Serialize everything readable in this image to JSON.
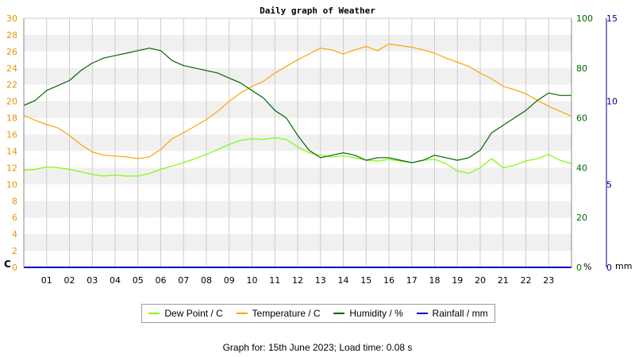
{
  "page": {
    "footer_prefix": "Graph for:",
    "footer_date": "15th June 2023;",
    "footer_load": "Load time: 0.08 s"
  },
  "colors": {
    "dew_point": "#7cfc00",
    "temperature": "#ffa500",
    "humidity": "#006400",
    "rainfall": "#0000cd",
    "axis_left": "#e69500",
    "axis_hum": "#006400",
    "axis_rain": "#00008b",
    "band": "#f0f0f0",
    "grid": "#cccccc"
  },
  "chart_data": {
    "type": "line",
    "title": "Daily graph of Weather",
    "x_ticks": [
      "01",
      "02",
      "03",
      "04",
      "05",
      "06",
      "07",
      "08",
      "09",
      "10",
      "11",
      "12",
      "13",
      "14",
      "15",
      "16",
      "17",
      "18",
      "19",
      "20",
      "21",
      "22",
      "23"
    ],
    "xlim": [
      0,
      24
    ],
    "grid": true,
    "legend_placement": "bottom",
    "axes": {
      "left": {
        "unit": "C",
        "ylim": [
          0,
          30
        ],
        "ticks": [
          0,
          2,
          4,
          6,
          8,
          10,
          12,
          14,
          16,
          18,
          20,
          22,
          24,
          26,
          28,
          30
        ]
      },
      "right_humidity": {
        "unit": "%",
        "ylim": [
          0,
          100
        ],
        "ticks": [
          0,
          20,
          40,
          60,
          80,
          100
        ]
      },
      "right_rain": {
        "unit": "mm",
        "ylim": [
          0,
          15
        ],
        "ticks": [
          0,
          5,
          10,
          15
        ]
      }
    },
    "series": [
      {
        "name": "Dew Point / C",
        "axis": "left",
        "color_key": "dew_point",
        "x": [
          0,
          0.5,
          1,
          1.5,
          2,
          2.5,
          3,
          3.5,
          4,
          4.5,
          5,
          5.5,
          6,
          6.5,
          7,
          7.5,
          8,
          8.5,
          9,
          9.5,
          10,
          10.5,
          11,
          11.5,
          12,
          12.5,
          13,
          13.5,
          14,
          14.5,
          15,
          15.5,
          16,
          16.5,
          17,
          17.5,
          18,
          18.5,
          19,
          19.5,
          20,
          20.5,
          21,
          21.5,
          22,
          22.5,
          23,
          23.5,
          24
        ],
        "y": [
          11.7,
          11.8,
          12.1,
          12.0,
          11.8,
          11.5,
          11.2,
          11.0,
          11.1,
          11.0,
          11.0,
          11.3,
          11.8,
          12.2,
          12.6,
          13.1,
          13.6,
          14.2,
          14.8,
          15.3,
          15.5,
          15.4,
          15.6,
          15.4,
          14.5,
          13.8,
          13.5,
          13.3,
          13.4,
          13.2,
          12.9,
          12.8,
          13.0,
          12.8,
          12.6,
          12.9,
          13.0,
          12.5,
          11.6,
          11.3,
          12.0,
          13.1,
          12.0,
          12.3,
          12.8,
          13.1,
          13.6,
          12.9,
          12.5
        ]
      },
      {
        "name": "Temperature / C",
        "axis": "left",
        "color_key": "temperature",
        "x": [
          0,
          0.5,
          1,
          1.5,
          2,
          2.5,
          3,
          3.5,
          4,
          4.5,
          5,
          5.5,
          6,
          6.5,
          7,
          7.5,
          8,
          8.5,
          9,
          9.5,
          10,
          10.5,
          11,
          11.5,
          12,
          12.5,
          13,
          13.5,
          14,
          14.5,
          15,
          15.5,
          16,
          16.5,
          17,
          17.5,
          18,
          18.5,
          19,
          19.5,
          20,
          20.5,
          21,
          21.5,
          22,
          22.5,
          23,
          23.5,
          24
        ],
        "y": [
          18.3,
          17.7,
          17.2,
          16.8,
          15.9,
          14.8,
          13.9,
          13.5,
          13.4,
          13.3,
          13.1,
          13.3,
          14.2,
          15.5,
          16.2,
          17.0,
          17.8,
          18.8,
          20.0,
          21.0,
          21.8,
          22.4,
          23.4,
          24.2,
          25.0,
          25.7,
          26.4,
          26.2,
          25.7,
          26.2,
          26.6,
          26.1,
          26.9,
          26.7,
          26.5,
          26.2,
          25.8,
          25.2,
          24.7,
          24.2,
          23.4,
          22.7,
          21.8,
          21.4,
          20.9,
          20.1,
          19.4,
          18.8,
          18.2
        ]
      },
      {
        "name": "Humidity / %",
        "axis": "right_humidity",
        "color_key": "humidity",
        "x": [
          0,
          0.5,
          1,
          1.5,
          2,
          2.5,
          3,
          3.5,
          4,
          4.5,
          5,
          5.5,
          6,
          6.5,
          7,
          7.5,
          8,
          8.5,
          9,
          9.5,
          10,
          10.5,
          11,
          11.5,
          12,
          12.5,
          13,
          13.5,
          14,
          14.5,
          15,
          15.5,
          16,
          16.5,
          17,
          17.5,
          18,
          18.5,
          19,
          19.5,
          20,
          20.5,
          21,
          21.5,
          22,
          22.5,
          23,
          23.5,
          24
        ],
        "y": [
          65,
          67,
          71,
          73,
          75,
          79,
          82,
          84,
          85,
          86,
          87,
          88,
          87,
          83,
          81,
          80,
          79,
          78,
          76,
          74,
          71,
          68,
          63,
          60,
          53,
          47,
          44,
          45,
          46,
          45,
          43,
          44,
          44,
          43,
          42,
          43,
          45,
          44,
          43,
          44,
          47,
          54,
          57,
          60,
          63,
          67,
          70,
          69,
          69
        ]
      },
      {
        "name": "Rainfall / mm",
        "axis": "right_rain",
        "color_key": "rainfall",
        "x": [
          0,
          24
        ],
        "y": [
          0,
          0
        ]
      }
    ]
  }
}
